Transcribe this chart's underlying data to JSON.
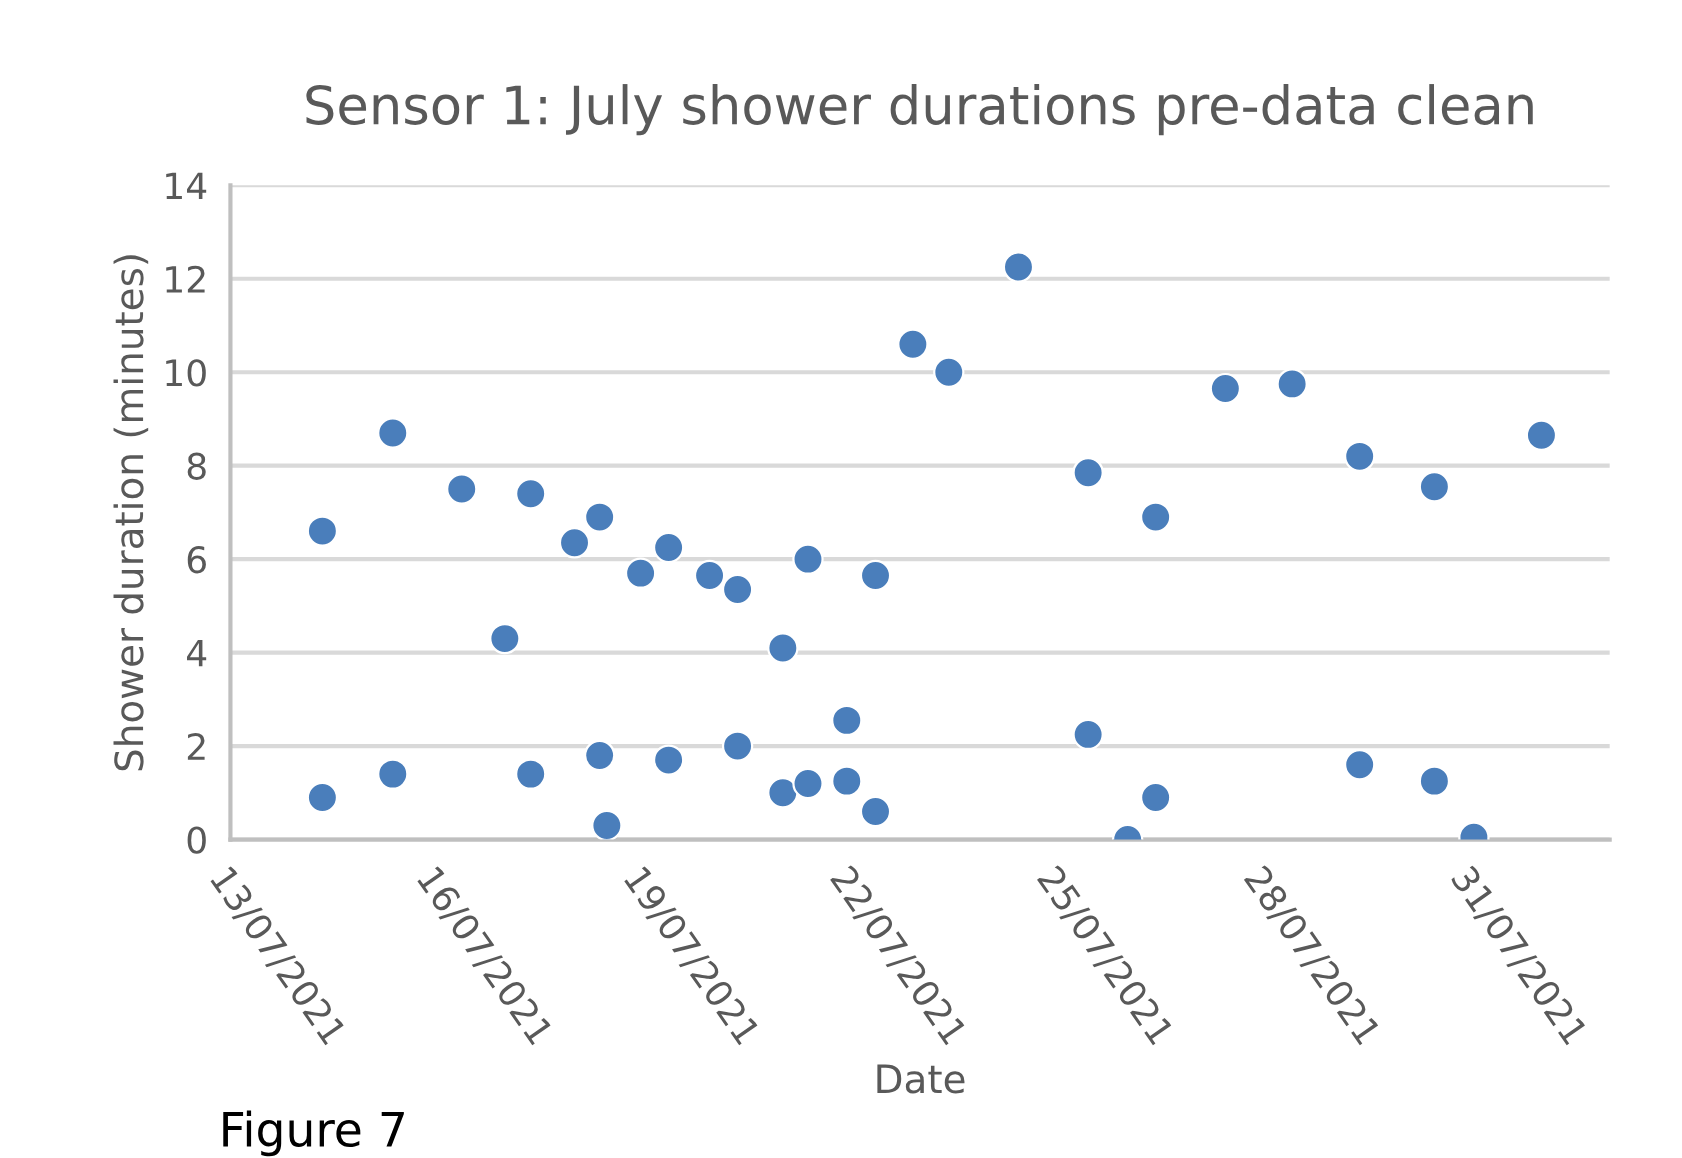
{
  "chart_data": {
    "type": "scatter",
    "title": "Sensor 1: July shower durations pre-data clean",
    "xlabel": "Date",
    "ylabel": "Shower duration (minutes)",
    "annotations": [
      "Figure 7"
    ],
    "x": [
      "2021-07-14T08:00",
      "2021-07-14T08:00",
      "2021-07-15T08:30",
      "2021-07-15T08:30",
      "2021-07-16T08:30",
      "2021-07-16T23:30",
      "2021-07-17T08:30",
      "2021-07-17T08:30",
      "2021-07-17T23:45",
      "2021-07-18T08:30",
      "2021-07-18T08:30",
      "2021-07-18T11:00",
      "2021-07-18T22:45",
      "2021-07-19T08:30",
      "2021-07-19T08:30",
      "2021-07-19T22:45",
      "2021-07-20T08:30",
      "2021-07-20T08:30",
      "2021-07-21T00:15",
      "2021-07-21T00:15",
      "2021-07-21T09:00",
      "2021-07-21T09:00",
      "2021-07-21T22:30",
      "2021-07-21T22:30",
      "2021-07-22T08:30",
      "2021-07-22T08:30",
      "2021-07-22T21:30",
      "2021-07-23T10:00",
      "2021-07-24T10:15",
      "2021-07-25T10:30",
      "2021-07-25T10:30",
      "2021-07-26T00:15",
      "2021-07-26T10:00",
      "2021-07-26T10:00",
      "2021-07-27T10:15",
      "2021-07-28T09:30",
      "2021-07-29T09:00",
      "2021-07-29T09:00",
      "2021-07-30T11:00",
      "2021-07-30T11:00",
      "2021-07-31T00:45",
      "2021-08-01T00:15"
    ],
    "series": [
      {
        "color": "#4a7ebb",
        "values": [
          6.6,
          0.9,
          8.7,
          1.4,
          7.5,
          4.3,
          7.4,
          1.4,
          6.35,
          6.9,
          1.8,
          0.3,
          5.7,
          6.25,
          1.7,
          5.65,
          5.35,
          2.0,
          4.1,
          1.0,
          6.0,
          1.2,
          2.55,
          1.25,
          5.65,
          0.6,
          10.6,
          10.0,
          12.25,
          7.85,
          2.25,
          0.0,
          6.9,
          0.9,
          9.65,
          9.75,
          8.2,
          1.6,
          7.55,
          1.25,
          0.05,
          8.65
        ]
      }
    ],
    "xlim": [
      "2021-07-13",
      "2021-08-02"
    ],
    "xticks": [
      {
        "value": "2021-07-13",
        "label": "13/07/2021"
      },
      {
        "value": "2021-07-16",
        "label": "16/07/2021"
      },
      {
        "value": "2021-07-19",
        "label": "19/07/2021"
      },
      {
        "value": "2021-07-22",
        "label": "22/07/2021"
      },
      {
        "value": "2021-07-25",
        "label": "25/07/2021"
      },
      {
        "value": "2021-07-28",
        "label": "28/07/2021"
      },
      {
        "value": "2021-07-31",
        "label": "31/07/2021"
      }
    ],
    "ylim": [
      0,
      14
    ],
    "yticks": [
      0,
      2,
      4,
      6,
      8,
      10,
      12,
      14
    ],
    "grid": "y",
    "marker": "circle",
    "legend": false
  }
}
